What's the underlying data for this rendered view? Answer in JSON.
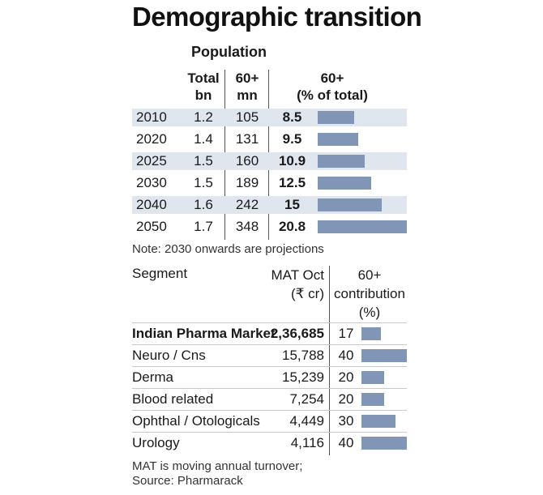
{
  "title": "Demographic transition",
  "population_header": "Population",
  "col_total_line1": "Total",
  "col_total_line2": "bn",
  "col_60_line1": "60+",
  "col_60_line2": "mn",
  "col_pct_line1": "60+",
  "col_pct_line2": "(% of total)",
  "population_rows": [
    {
      "year": "2010",
      "total": "1.2",
      "sixty": "105",
      "pct": "8.5"
    },
    {
      "year": "2020",
      "total": "1.4",
      "sixty": "131",
      "pct": "9.5"
    },
    {
      "year": "2025",
      "total": "1.5",
      "sixty": "160",
      "pct": "10.9"
    },
    {
      "year": "2030",
      "total": "1.5",
      "sixty": "189",
      "pct": "12.5"
    },
    {
      "year": "2040",
      "total": "1.6",
      "sixty": "242",
      "pct": "15"
    },
    {
      "year": "2050",
      "total": "1.7",
      "sixty": "348",
      "pct": "20.8"
    }
  ],
  "note": "Note: 2030 onwards are projections",
  "seg_header_segment": "Segment",
  "seg_header_mat_line1": "MAT Oct",
  "seg_header_mat_line2": "(₹ cr)",
  "seg_header_contrib_line1": "60+",
  "seg_header_contrib_line2": "contribution",
  "seg_header_contrib_line3": "(%)",
  "segments": [
    {
      "name": "Indian Pharma Market",
      "mat": "2,36,685",
      "contrib": "17"
    },
    {
      "name": "Neuro / Cns",
      "mat": "15,788",
      "contrib": "40"
    },
    {
      "name": "Derma",
      "mat": "15,239",
      "contrib": "20"
    },
    {
      "name": "Blood related",
      "mat": "7,254",
      "contrib": "20"
    },
    {
      "name": "Ophthal / Otologicals",
      "mat": "4,449",
      "contrib": "30"
    },
    {
      "name": "Urology",
      "mat": "4,116",
      "contrib": "40"
    }
  ],
  "footnote_line1": "MAT is moving annual turnover;",
  "footnote_line2": "Source: Pharmarack",
  "chart_data": [
    {
      "type": "table",
      "title": "Demographic transition",
      "categories": [
        "2010",
        "2020",
        "2025",
        "2030",
        "2040",
        "2050"
      ],
      "series": [
        {
          "name": "Total bn",
          "values": [
            1.2,
            1.4,
            1.5,
            1.5,
            1.6,
            1.7
          ]
        },
        {
          "name": "60+ mn",
          "values": [
            105,
            131,
            160,
            189,
            242,
            348
          ]
        },
        {
          "name": "60+ (% of total)",
          "values": [
            8.5,
            9.5,
            10.9,
            12.5,
            15,
            20.8
          ]
        }
      ],
      "bar_series": "60+ (% of total)",
      "bar_max": 20.8
    },
    {
      "type": "table",
      "categories": [
        "Indian Pharma Market",
        "Neuro / Cns",
        "Derma",
        "Blood related",
        "Ophthal / Otologicals",
        "Urology"
      ],
      "series": [
        {
          "name": "MAT Oct (₹ cr)",
          "values": [
            236685,
            15788,
            15239,
            7254,
            4449,
            4116
          ]
        },
        {
          "name": "60+ contribution (%)",
          "values": [
            17,
            40,
            20,
            20,
            30,
            40
          ]
        }
      ],
      "bar_series": "60+ contribution (%)",
      "bar_max": 40
    }
  ],
  "colors": {
    "bar": "#8195b6",
    "band": "#dfe6ee"
  }
}
